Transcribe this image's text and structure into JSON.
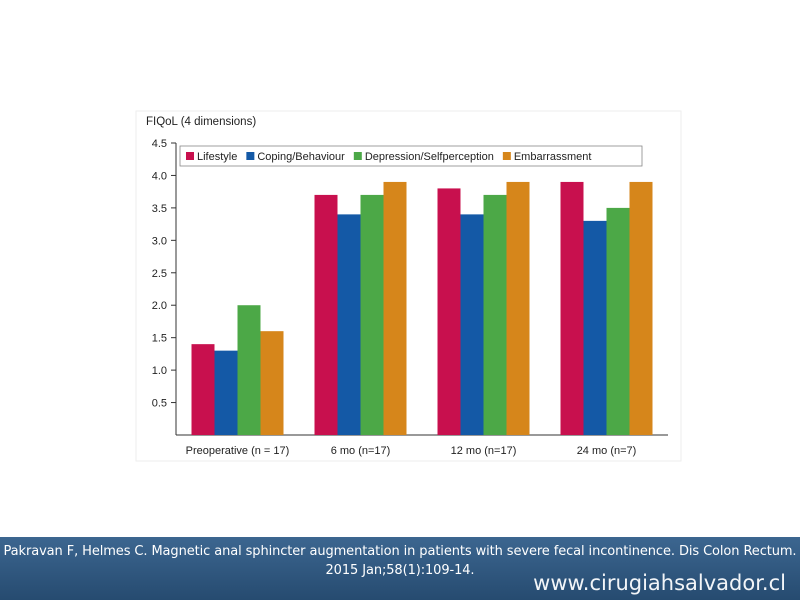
{
  "chart_data": {
    "type": "bar",
    "title": "FIQoL (4 dimensions)",
    "categories": [
      "Preoperative (n = 17)",
      "6 mo (n=17)",
      "12 mo (n=17)",
      "24 mo (n=7)"
    ],
    "series": [
      {
        "name": "Lifestyle",
        "color": "#c8104e",
        "values": [
          1.4,
          3.7,
          3.8,
          3.9
        ]
      },
      {
        "name": "Coping/Behaviour",
        "color": "#1459a6",
        "values": [
          1.3,
          3.4,
          3.4,
          3.3
        ]
      },
      {
        "name": "Depression/Selfperception",
        "color": "#4ca847",
        "values": [
          2.0,
          3.7,
          3.7,
          3.5
        ]
      },
      {
        "name": "Embarrassment",
        "color": "#d6861b",
        "values": [
          1.6,
          3.9,
          3.9,
          3.9
        ]
      }
    ],
    "yticks": [
      "0.5",
      "1.0",
      "1.5",
      "2.0",
      "2.5",
      "3.0",
      "3.5",
      "4.0",
      "4.5"
    ],
    "ylim": [
      0,
      4.5
    ],
    "legend_position": "top",
    "grid": false
  },
  "footer": {
    "citation_line1": "Pakravan F, Helmes C. Magnetic anal sphincter augmentation in patients with severe fecal incontinence. Dis Colon Rectum.",
    "citation_line2": "2015 Jan;58(1):109-14.",
    "website": "www.cirugiahsalvador.cl"
  }
}
